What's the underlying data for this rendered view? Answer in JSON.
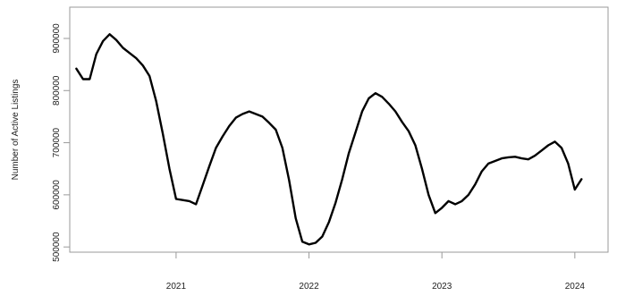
{
  "chart_data": {
    "type": "line",
    "title": "",
    "xlabel": "",
    "ylabel": "Number of Active Listings",
    "xlim": [
      2020.2,
      2024.25
    ],
    "ylim": [
      490000,
      960000
    ],
    "x_ticks": [
      {
        "value": 2021.0,
        "label": "2021"
      },
      {
        "value": 2022.0,
        "label": "2022"
      },
      {
        "value": 2023.0,
        "label": "2023"
      },
      {
        "value": 2024.0,
        "label": "2024"
      }
    ],
    "y_ticks": [
      {
        "value": 500000,
        "label": "500000"
      },
      {
        "value": 600000,
        "label": "600000"
      },
      {
        "value": 700000,
        "label": "700000"
      },
      {
        "value": 800000,
        "label": "800000"
      },
      {
        "value": 900000,
        "label": "900000"
      }
    ],
    "grid": false,
    "legend": "none",
    "line_color": "#000000",
    "series": [
      {
        "x": [
          2020.25,
          2020.3,
          2020.35,
          2020.4,
          2020.45,
          2020.5,
          2020.55,
          2020.6,
          2020.65,
          2020.7,
          2020.75,
          2020.8,
          2020.85,
          2020.9,
          2020.95,
          2021.0,
          2021.05,
          2021.1,
          2021.15,
          2021.2,
          2021.25,
          2021.3,
          2021.35,
          2021.4,
          2021.45,
          2021.5,
          2021.55,
          2021.6,
          2021.65,
          2021.7,
          2021.75,
          2021.8,
          2021.85,
          2021.9,
          2021.95,
          2022.0,
          2022.05,
          2022.1,
          2022.15,
          2022.2,
          2022.25,
          2022.3,
          2022.35,
          2022.4,
          2022.45,
          2022.5,
          2022.55,
          2022.6,
          2022.65,
          2022.7,
          2022.75,
          2022.8,
          2022.85,
          2022.9,
          2022.95,
          2023.0,
          2023.05,
          2023.1,
          2023.15,
          2023.2,
          2023.25,
          2023.3,
          2023.35,
          2023.4,
          2023.45,
          2023.5,
          2023.55,
          2023.6,
          2023.65,
          2023.7,
          2023.75,
          2023.8,
          2023.85,
          2023.9,
          2023.95,
          2024.0,
          2024.05
        ],
        "values": [
          842000,
          822000,
          822000,
          870000,
          895000,
          908000,
          897000,
          882000,
          872000,
          862000,
          848000,
          828000,
          780000,
          718000,
          650000,
          592000,
          590000,
          588000,
          582000,
          618000,
          655000,
          690000,
          712000,
          732000,
          748000,
          755000,
          760000,
          755000,
          750000,
          738000,
          725000,
          690000,
          628000,
          555000,
          510000,
          505000,
          508000,
          520000,
          548000,
          585000,
          630000,
          680000,
          720000,
          760000,
          785000,
          795000,
          788000,
          775000,
          760000,
          740000,
          722000,
          695000,
          650000,
          600000,
          565000,
          575000,
          588000,
          582000,
          588000,
          600000,
          620000,
          645000,
          660000,
          665000,
          670000,
          672000,
          673000,
          670000,
          668000,
          675000,
          685000,
          695000,
          702000,
          690000,
          660000,
          610000,
          630000
        ]
      }
    ]
  }
}
